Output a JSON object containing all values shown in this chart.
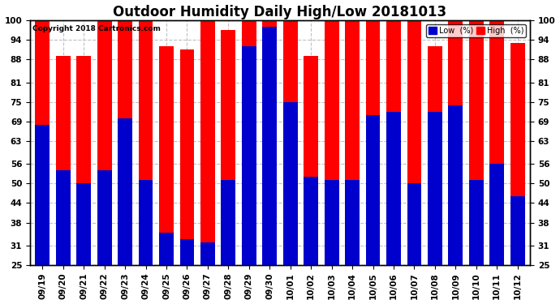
{
  "title": "Outdoor Humidity Daily High/Low 20181013",
  "copyright": "Copyright 2018 Cartronics.com",
  "categories": [
    "09/19",
    "09/20",
    "09/21",
    "09/22",
    "09/23",
    "09/24",
    "09/25",
    "09/26",
    "09/27",
    "09/28",
    "09/29",
    "09/30",
    "10/01",
    "10/02",
    "10/03",
    "10/04",
    "10/05",
    "10/06",
    "10/07",
    "10/08",
    "10/09",
    "10/10",
    "10/11",
    "10/12"
  ],
  "high_values": [
    100,
    89,
    89,
    100,
    100,
    100,
    92,
    91,
    100,
    97,
    100,
    100,
    100,
    89,
    100,
    100,
    100,
    100,
    100,
    92,
    100,
    100,
    100,
    93
  ],
  "low_values": [
    68,
    54,
    50,
    54,
    70,
    51,
    35,
    33,
    32,
    51,
    92,
    98,
    75,
    52,
    51,
    51,
    71,
    72,
    50,
    72,
    74,
    51,
    56,
    46
  ],
  "high_color": "#ff0000",
  "low_color": "#0000cc",
  "bg_color": "#ffffff",
  "grid_color": "#c0c0c0",
  "ylim": [
    25,
    100
  ],
  "yticks": [
    25,
    31,
    38,
    44,
    50,
    56,
    63,
    69,
    75,
    81,
    88,
    94,
    100
  ],
  "title_fontsize": 12,
  "tick_fontsize": 7.5,
  "bar_width": 0.7,
  "figsize": [
    6.9,
    3.75
  ],
  "dpi": 100
}
